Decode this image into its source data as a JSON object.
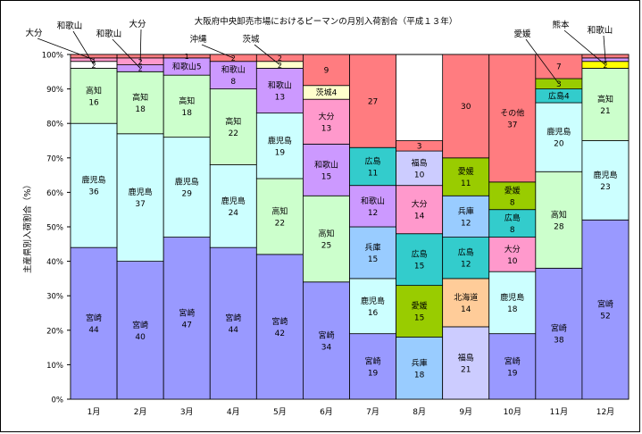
{
  "chart_data": {
    "type": "bar",
    "stacked": true,
    "title": "大阪府中央卸売市場におけるピーマンの月別入荷割合（平成１３年）",
    "ylabel": "主産県別入荷割合（%）",
    "xlabel": "",
    "ylim": [
      0,
      100
    ],
    "yticks": [
      "0%",
      "10%",
      "20%",
      "30%",
      "40%",
      "50%",
      "60%",
      "70%",
      "80%",
      "90%",
      "100%"
    ],
    "categories": [
      "1月",
      "2月",
      "3月",
      "4月",
      "5月",
      "6月",
      "7月",
      "8月",
      "9月",
      "10月",
      "11月",
      "12月"
    ],
    "grid": false,
    "legend": "none",
    "segments": [
      [
        {
          "name": "宮崎",
          "value": 44,
          "color": "#9999ff"
        },
        {
          "name": "鹿児島",
          "value": 36,
          "color": "#ccffff"
        },
        {
          "name": "高知",
          "value": 16,
          "color": "#ccffcc"
        },
        {
          "name": "",
          "value": 2,
          "color": "#ffffff",
          "label": "2"
        },
        {
          "name": "",
          "value": 1,
          "color": "#ff99cc",
          "label": "1"
        },
        {
          "name": "",
          "value": 1,
          "color": "#ff7c80",
          "label": ""
        }
      ],
      [
        {
          "name": "宮崎",
          "value": 40,
          "color": "#9999ff"
        },
        {
          "name": "鹿児島",
          "value": 37,
          "color": "#ccffff"
        },
        {
          "name": "高知",
          "value": 18,
          "color": "#ccffcc"
        },
        {
          "name": "",
          "value": 2,
          "color": "#cc99ff",
          "label": "2"
        },
        {
          "name": "",
          "value": 2,
          "color": "#ff99cc",
          "label": "2"
        },
        {
          "name": "",
          "value": 1,
          "color": "#ff7c80",
          "label": ""
        }
      ],
      [
        {
          "name": "宮崎",
          "value": 47,
          "color": "#9999ff"
        },
        {
          "name": "鹿児島",
          "value": 29,
          "color": "#ccffff"
        },
        {
          "name": "高知",
          "value": 18,
          "color": "#ccffcc"
        },
        {
          "name": "",
          "value": 5,
          "color": "#cc99ff",
          "label": "和歌山5"
        },
        {
          "name": "",
          "value": 1,
          "color": "#ff7c80",
          "label": "1"
        }
      ],
      [
        {
          "name": "宮崎",
          "value": 44,
          "color": "#9999ff"
        },
        {
          "name": "鹿児島",
          "value": 24,
          "color": "#ccffff"
        },
        {
          "name": "高知",
          "value": 22,
          "color": "#ccffcc"
        },
        {
          "name": "和歌山",
          "value": 8,
          "color": "#cc99ff"
        },
        {
          "name": "",
          "value": 2,
          "color": "#ff7c80",
          "label": "2"
        }
      ],
      [
        {
          "name": "宮崎",
          "value": 42,
          "color": "#9999ff"
        },
        {
          "name": "高知",
          "value": 22,
          "color": "#ccffcc"
        },
        {
          "name": "鹿児島",
          "value": 19,
          "color": "#ccffff"
        },
        {
          "name": "和歌山",
          "value": 13,
          "color": "#cc99ff"
        },
        {
          "name": "",
          "value": 2,
          "color": "#ffffcc",
          "label": "2"
        },
        {
          "name": "",
          "value": 2,
          "color": "#ff7c80",
          "label": "2"
        }
      ],
      [
        {
          "name": "宮崎",
          "value": 34,
          "color": "#9999ff"
        },
        {
          "name": "高知",
          "value": 25,
          "color": "#ccffcc"
        },
        {
          "name": "和歌山",
          "value": 15,
          "color": "#cc99ff"
        },
        {
          "name": "大分",
          "value": 13,
          "color": "#ff99cc"
        },
        {
          "name": "",
          "value": 4,
          "color": "#ffffcc",
          "label": "茨城4"
        },
        {
          "name": "",
          "value": 9,
          "color": "#ff7c80",
          "label": "9"
        }
      ],
      [
        {
          "name": "宮崎",
          "value": 19,
          "color": "#9999ff"
        },
        {
          "name": "鹿児島",
          "value": 16,
          "color": "#ccffff"
        },
        {
          "name": "兵庫",
          "value": 15,
          "color": "#99ccff"
        },
        {
          "name": "和歌山",
          "value": 12,
          "color": "#cc99ff"
        },
        {
          "name": "広島",
          "value": 11,
          "color": "#33cccc"
        },
        {
          "name": "",
          "value": 27,
          "color": "#ff7c80",
          "label": "27"
        }
      ],
      [
        {
          "name": "兵庫",
          "value": 18,
          "color": "#99ccff"
        },
        {
          "name": "愛媛",
          "value": 15,
          "color": "#99cc00"
        },
        {
          "name": "広島",
          "value": 15,
          "color": "#33cccc"
        },
        {
          "name": "大分",
          "value": 14,
          "color": "#ff99cc"
        },
        {
          "name": "福島",
          "value": 10,
          "color": "#ccccff"
        },
        {
          "name": "",
          "value": 3,
          "color": "#ff7c80",
          "label": "3"
        }
      ],
      [
        {
          "name": "福島",
          "value": 21,
          "color": "#ccccff"
        },
        {
          "name": "北海道",
          "value": 14,
          "color": "#ffcc99"
        },
        {
          "name": "広島",
          "value": 12,
          "color": "#33cccc"
        },
        {
          "name": "兵庫",
          "value": 12,
          "color": "#99ccff"
        },
        {
          "name": "愛媛",
          "value": 11,
          "color": "#99cc00"
        },
        {
          "name": "",
          "value": 30,
          "color": "#ff7c80",
          "label": "30"
        }
      ],
      [
        {
          "name": "宮崎",
          "value": 19,
          "color": "#9999ff"
        },
        {
          "name": "鹿児島",
          "value": 18,
          "color": "#ccffff"
        },
        {
          "name": "大分",
          "value": 10,
          "color": "#ff99cc"
        },
        {
          "name": "広島",
          "value": 8,
          "color": "#33cccc"
        },
        {
          "name": "愛媛",
          "value": 8,
          "color": "#99cc00"
        },
        {
          "name": "その他",
          "value": 37,
          "color": "#ff7c80"
        }
      ],
      [
        {
          "name": "宮崎",
          "value": 38,
          "color": "#9999ff"
        },
        {
          "name": "高知",
          "value": 28,
          "color": "#ccffcc"
        },
        {
          "name": "鹿児島",
          "value": 20,
          "color": "#ccffff"
        },
        {
          "name": "",
          "value": 4,
          "color": "#33cccc",
          "label": "広島4"
        },
        {
          "name": "",
          "value": 3,
          "color": "#99cc00",
          "label": "3"
        },
        {
          "name": "",
          "value": 7,
          "color": "#ff7c80",
          "label": "7"
        }
      ],
      [
        {
          "name": "宮崎",
          "value": 52,
          "color": "#9999ff"
        },
        {
          "name": "鹿児島",
          "value": 23,
          "color": "#ccffff"
        },
        {
          "name": "高知",
          "value": 21,
          "color": "#ccffcc"
        },
        {
          "name": "",
          "value": 2,
          "color": "#ffff00",
          "label": "2"
        },
        {
          "name": "",
          "value": 1,
          "color": "#cc99ff",
          "label": "1"
        },
        {
          "name": "",
          "value": 1,
          "color": "#ff7c80",
          "label": ""
        }
      ]
    ],
    "annotations": [
      {
        "text": "大分",
        "month": 0,
        "stack_index": 4
      },
      {
        "text": "和歌山",
        "month": 0,
        "stack_index": 3
      },
      {
        "text": "和歌山",
        "month": 1,
        "stack_index": 3
      },
      {
        "text": "大分",
        "month": 1,
        "stack_index": 4
      },
      {
        "text": "沖縄",
        "month": 3,
        "stack_index": 4
      },
      {
        "text": "茨城",
        "month": 4,
        "stack_index": 4
      },
      {
        "text": "愛媛",
        "month": 10,
        "stack_index": 4
      },
      {
        "text": "熊本",
        "month": 11,
        "stack_index": 3
      },
      {
        "text": "和歌山",
        "month": 11,
        "stack_index": 4
      }
    ]
  }
}
